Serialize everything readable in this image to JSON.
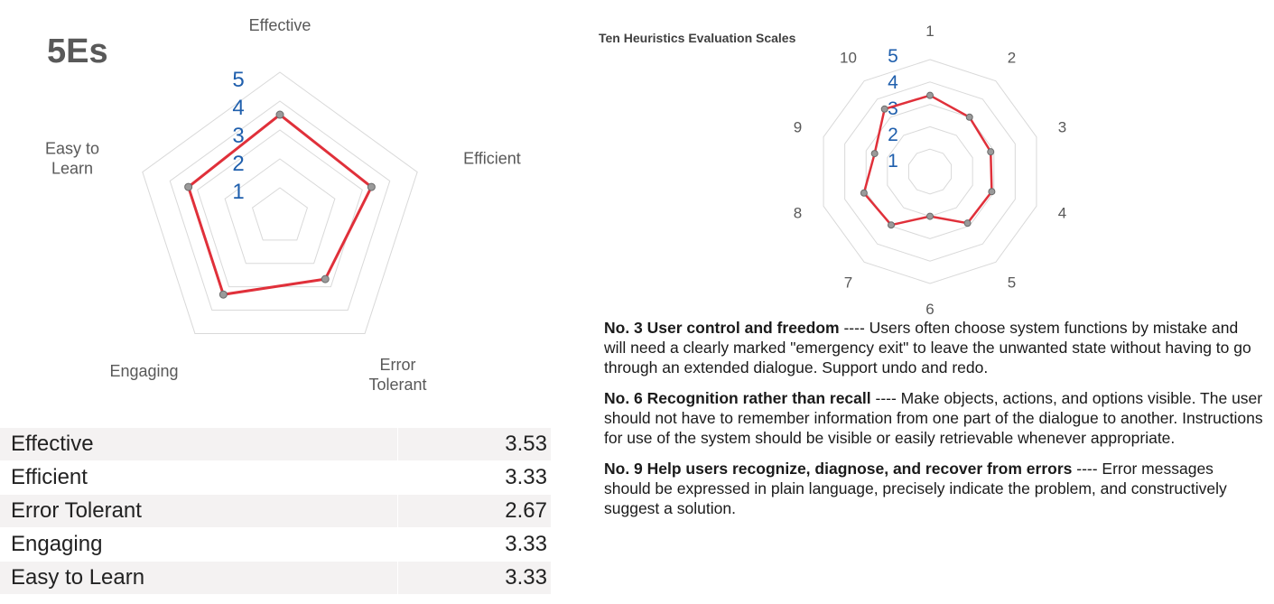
{
  "left_panel": {
    "title": "5Es",
    "table": [
      {
        "name": "Effective",
        "value": "3.53"
      },
      {
        "name": "Efficient",
        "value": "3.33"
      },
      {
        "name": "Error Tolerant",
        "value": "2.67"
      },
      {
        "name": "Engaging",
        "value": "3.33"
      },
      {
        "name": "Easy to Learn",
        "value": "3.33"
      }
    ]
  },
  "right_panel": {
    "notes": [
      {
        "heading": "No. 3  User control and freedom",
        "sep": " ---- ",
        "text": "Users often choose system functions by mistake and will need a clearly marked \"emergency exit\" to leave the unwanted state without having to go through an extended dialogue. Support undo and redo."
      },
      {
        "heading": "No. 6 Recognition rather than recall",
        "sep": " ---- ",
        "text": "Make objects, actions, and options visible. The user should not have to remember information from one part of the dialogue to another. Instructions for use of the system should be visible or easily retrievable whenever appropriate."
      },
      {
        "heading": "No. 9 Help users recognize, diagnose, and recover from errors",
        "sep": " ---- ",
        "text": "Error messages should be expressed in plain language, precisely indicate the problem, and constructively suggest a solution."
      }
    ]
  },
  "chart_data": [
    {
      "type": "radar",
      "title": "",
      "categories": [
        "Effective",
        "Efficient",
        "Error Tolerant",
        "Engaging",
        "Easy to Learn"
      ],
      "category_labels": [
        [
          "Effective"
        ],
        [
          "Efficient"
        ],
        [
          "Error",
          "Tolerant"
        ],
        [
          "Engaging"
        ],
        [
          "Easy to",
          "Learn"
        ]
      ],
      "scale_labels": [
        "1",
        "2",
        "3",
        "4",
        "5"
      ],
      "series": [
        {
          "values": [
            3.53,
            3.33,
            2.67,
            3.33,
            3.33
          ]
        }
      ],
      "rlim": [
        0,
        5
      ],
      "grid": true,
      "line_color": "#e0303a",
      "grid_color": "#d9d9d9",
      "label_color": "#595959",
      "scale_color": "#1f5fad"
    },
    {
      "type": "radar",
      "title": "Ten Heuristics Evaluation Scales",
      "categories": [
        "1",
        "2",
        "3",
        "4",
        "5",
        "6",
        "7",
        "8",
        "9",
        "10"
      ],
      "scale_labels": [
        "1",
        "2",
        "3",
        "4",
        "5"
      ],
      "series": [
        {
          "values": [
            3.4,
            3.0,
            2.85,
            2.9,
            2.85,
            2.0,
            2.95,
            3.1,
            2.6,
            3.45
          ]
        }
      ],
      "rlim": [
        0,
        5
      ],
      "grid": true,
      "line_color": "#e0303a",
      "grid_color": "#d9d9d9",
      "label_color": "#595959",
      "scale_color": "#1f5fad"
    }
  ]
}
